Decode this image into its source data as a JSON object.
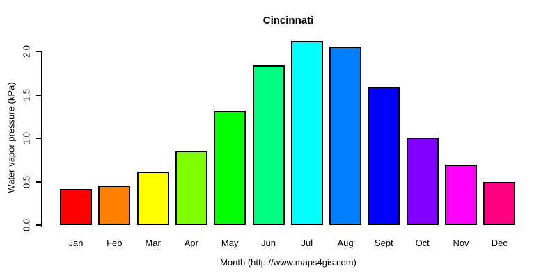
{
  "chart_data": {
    "type": "bar",
    "title": "Cincinnati",
    "xlabel": "Month (http://www.maps4gis.com)",
    "ylabel": "Water vapor pressure (kPa)",
    "categories": [
      "Jan",
      "Feb",
      "Mar",
      "Apr",
      "May",
      "Jun",
      "Jul",
      "Aug",
      "Sept",
      "Oct",
      "Nov",
      "Dec"
    ],
    "values": [
      0.42,
      0.46,
      0.62,
      0.86,
      1.32,
      1.84,
      2.12,
      2.06,
      1.59,
      1.01,
      0.7,
      0.5
    ],
    "bar_colors": [
      "#FF0000",
      "#FF8000",
      "#FFFF00",
      "#80FF00",
      "#00FF00",
      "#00FF80",
      "#00FFFF",
      "#0080FF",
      "#0000FF",
      "#8000FF",
      "#FF00FF",
      "#FF0080"
    ],
    "bar_border_color": "#000000",
    "yticks": [
      "0.0",
      "0.5",
      "1.0",
      "1.5",
      "2.0"
    ],
    "ylim": [
      0.0,
      2.15
    ],
    "grid": false,
    "legend": false,
    "background_color": "#FFFFFF",
    "text_color": "#000000"
  }
}
